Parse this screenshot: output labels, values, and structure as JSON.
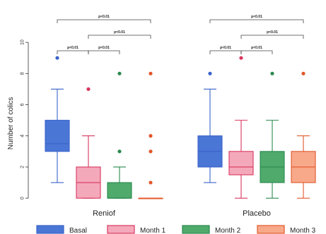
{
  "chart_data": {
    "type": "boxplot",
    "ylabel": "Number of colics",
    "yticks": [
      0,
      2,
      4,
      6,
      8,
      10
    ],
    "ylim": [
      -0.4,
      11
    ],
    "groups": [
      "Reniof",
      "Placebo"
    ],
    "legend": [
      {
        "label": "Basal",
        "color": "#3a63c9",
        "fill": "#4a76d6"
      },
      {
        "label": "Month 1",
        "color": "#d9365e",
        "fill": "#f4a9bb"
      },
      {
        "label": "Month 2",
        "color": "#2a8a4e",
        "fill": "#4faa6b"
      },
      {
        "label": "Month 3",
        "color": "#e2572a",
        "fill": "#f7a98a"
      }
    ],
    "series": [
      {
        "group": "Reniof",
        "name": "Basal",
        "min": 1,
        "q1": 3,
        "median": 3.5,
        "q3": 5,
        "max": 7,
        "outliers": [
          9
        ]
      },
      {
        "group": "Reniof",
        "name": "Month 1",
        "min": 0,
        "q1": 0,
        "median": 1,
        "q3": 2,
        "max": 4,
        "outliers": [
          7
        ]
      },
      {
        "group": "Reniof",
        "name": "Month 2",
        "min": 0,
        "q1": 0,
        "median": 0,
        "q3": 1,
        "max": 2,
        "outliers": [
          3,
          8
        ]
      },
      {
        "group": "Reniof",
        "name": "Month 3",
        "min": 0,
        "q1": 0,
        "median": 0,
        "q3": 0,
        "max": 0,
        "outliers": [
          1,
          3,
          4,
          8
        ]
      },
      {
        "group": "Placebo",
        "name": "Basal",
        "min": 1,
        "q1": 2,
        "median": 3,
        "q3": 4,
        "max": 7,
        "outliers": [
          8
        ]
      },
      {
        "group": "Placebo",
        "name": "Month 1",
        "min": 0,
        "q1": 1.5,
        "median": 2,
        "q3": 3,
        "max": 5,
        "outliers": [
          9
        ]
      },
      {
        "group": "Placebo",
        "name": "Month 2",
        "min": 0,
        "q1": 1,
        "median": 2,
        "q3": 3,
        "max": 5,
        "outliers": [
          8
        ]
      },
      {
        "group": "Placebo",
        "name": "Month 3",
        "min": 0,
        "q1": 1,
        "median": 2,
        "q3": 3,
        "max": 4,
        "outliers": [
          8
        ]
      }
    ],
    "significance": [
      {
        "group": "Reniof",
        "from": "Basal",
        "to": "Month 1",
        "label": "p<0.01",
        "level": 0
      },
      {
        "group": "Reniof",
        "from": "Month 1",
        "to": "Month 2",
        "label": "p<0.01",
        "level": 0
      },
      {
        "group": "Reniof",
        "from": "Month 1",
        "to": "Month 3",
        "label": "p<0.01",
        "level": 1
      },
      {
        "group": "Reniof",
        "from": "Basal",
        "to": "Month 3",
        "label": "p<0.01",
        "level": 2
      },
      {
        "group": "Placebo",
        "from": "Basal",
        "to": "Month 1",
        "label": "p<0.01",
        "level": 0
      },
      {
        "group": "Placebo",
        "from": "Month 1",
        "to": "Month 2",
        "label": "p<0.01",
        "level": 0
      },
      {
        "group": "Placebo",
        "from": "Month 1",
        "to": "Month 3",
        "label": "p<0.01",
        "level": 1
      },
      {
        "group": "Placebo",
        "from": "Basal",
        "to": "Month 3",
        "label": "p<0.01",
        "level": 2
      }
    ]
  }
}
